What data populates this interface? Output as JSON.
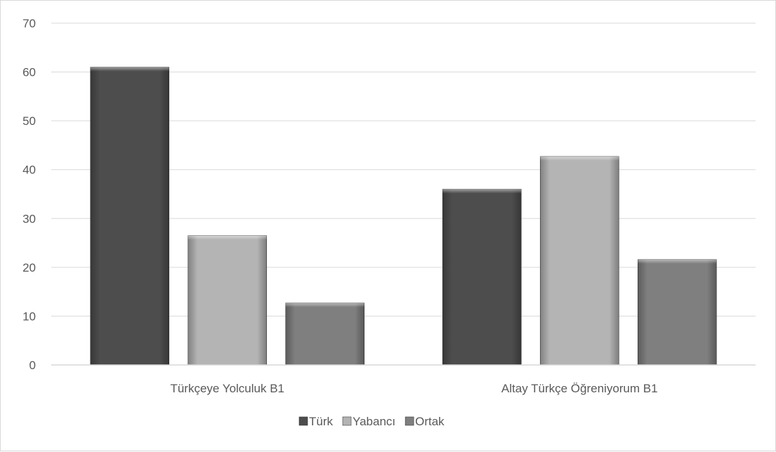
{
  "chart_data": {
    "type": "bar",
    "title": "",
    "xlabel": "",
    "ylabel": "",
    "categories": [
      "Türkçeye Yolculuk B1",
      "Altay Türkçe Öğreniyorum B1"
    ],
    "series": [
      {
        "name": "Türk",
        "values": [
          61,
          36
        ],
        "color": "#4d4d4d"
      },
      {
        "name": "Yabancı",
        "values": [
          26.5,
          42.7
        ],
        "color": "#b4b4b4"
      },
      {
        "name": "Ortak",
        "values": [
          12.7,
          21.6
        ],
        "color": "#7f7f7f"
      }
    ],
    "ylim": [
      0,
      70
    ],
    "yticks": [
      "0",
      "10",
      "20",
      "30",
      "40",
      "50",
      "60",
      "70"
    ],
    "grid": true,
    "legend_position": "bottom"
  }
}
